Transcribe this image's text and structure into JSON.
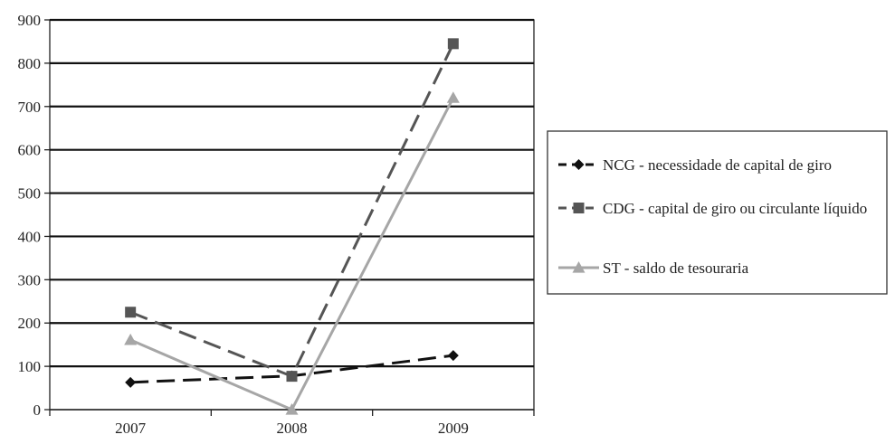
{
  "chart_data": {
    "type": "line",
    "title": "",
    "xlabel": "",
    "ylabel": "",
    "categories": [
      "2007",
      "2008",
      "2009"
    ],
    "ylim": [
      0,
      900
    ],
    "yticks": [
      0,
      100,
      200,
      300,
      400,
      500,
      600,
      700,
      800,
      900
    ],
    "grid": true,
    "legend_position": "right",
    "series": [
      {
        "name": "NCG - necessidade de capital de giro",
        "values": [
          63,
          78,
          125
        ],
        "color": "#111111",
        "dash": "long-dash",
        "marker": "diamond"
      },
      {
        "name": "CDG - capital de giro ou circulante líquido",
        "values": [
          225,
          77,
          845
        ],
        "color": "#555555",
        "dash": "long-dash",
        "marker": "square"
      },
      {
        "name": "ST - saldo de tesouraria",
        "values": [
          161,
          0,
          720
        ],
        "color": "#a6a6a6",
        "dash": "solid",
        "marker": "triangle"
      }
    ]
  }
}
